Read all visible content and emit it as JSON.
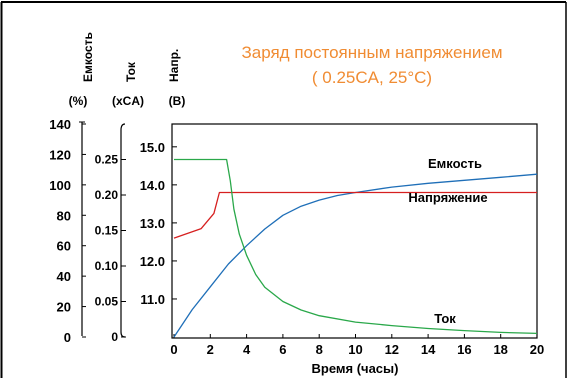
{
  "chart_data": {
    "type": "line",
    "title_line1": "Заряд постоянным напряжением",
    "title_line2": "( 0.25CA, 25°C)",
    "xlabel": "Время (часы)",
    "xlim": [
      0,
      20
    ],
    "x_ticks": [
      "0",
      "2",
      "4",
      "6",
      "8",
      "10",
      "12",
      "14",
      "16",
      "18",
      "20"
    ],
    "axes": [
      {
        "id": "capacity",
        "rotated_label": "Емкость",
        "unit": "(%)",
        "ticks": [
          "0",
          "20",
          "40",
          "60",
          "80",
          "100",
          "120",
          "140"
        ],
        "ylim": [
          0,
          140
        ]
      },
      {
        "id": "current",
        "rotated_label": "Ток",
        "unit": "(xCA)",
        "ticks": [
          "0",
          "0.05",
          "0.10",
          "0.15",
          "0.20",
          "0.25"
        ],
        "ylim": [
          0,
          0.3
        ]
      },
      {
        "id": "voltage",
        "rotated_label": "Напр.",
        "unit": "(В)",
        "ticks": [
          "11.0",
          "12.0",
          "13.0",
          "14.0",
          "15.0"
        ],
        "ylim": [
          10.0,
          15.6
        ]
      }
    ],
    "grid": false,
    "series": [
      {
        "name": "Емкость",
        "axis": "capacity",
        "color": "#1f6fb8",
        "x": [
          0,
          1,
          2,
          3,
          4,
          5,
          6,
          7,
          8,
          9,
          10,
          12,
          14,
          16,
          18,
          20
        ],
        "y": [
          0,
          18,
          33,
          48,
          60,
          71,
          80,
          86,
          90,
          93,
          95,
          98.5,
          101,
          103,
          105,
          107
        ]
      },
      {
        "name": "Напряжение",
        "axis": "voltage",
        "color": "#d62020",
        "x": [
          0,
          1.5,
          2.2,
          2.5,
          3,
          5,
          10,
          15,
          20
        ],
        "y": [
          12.6,
          12.85,
          13.25,
          13.8,
          13.8,
          13.8,
          13.8,
          13.8,
          13.8
        ]
      },
      {
        "name": "Ток",
        "axis": "current",
        "color": "#2aa84a",
        "x": [
          0,
          1,
          2,
          2.9,
          3.1,
          3.3,
          3.6,
          4,
          4.5,
          5,
          6,
          7,
          8,
          10,
          12,
          14,
          16,
          18,
          20
        ],
        "y": [
          0.25,
          0.25,
          0.25,
          0.25,
          0.22,
          0.18,
          0.145,
          0.115,
          0.088,
          0.07,
          0.05,
          0.038,
          0.03,
          0.021,
          0.016,
          0.012,
          0.009,
          0.0065,
          0.005
        ]
      }
    ],
    "annotations": [
      "Емкость",
      "Напряжение",
      "Ток"
    ]
  },
  "colors": {
    "title": "#f08c33",
    "axis": "#000000",
    "frame": "#000000"
  }
}
